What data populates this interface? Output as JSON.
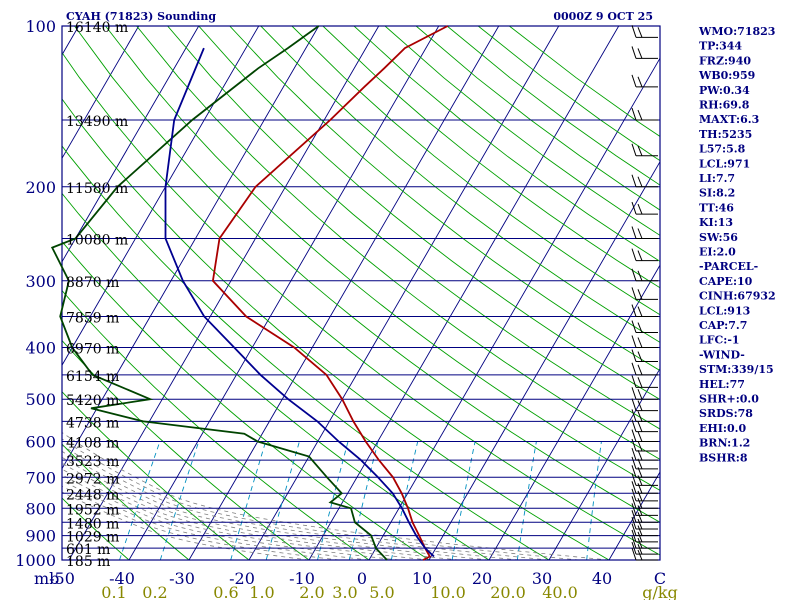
{
  "header": {
    "station": "CYAH (71823) Sounding",
    "datetime": "0000Z  9 OCT 25"
  },
  "chart_data": {
    "type": "line",
    "xlabel": "C",
    "ylabel": "mb",
    "xlim": [
      -50,
      50
    ],
    "ylim": [
      1000,
      100
    ],
    "y_scale": "log",
    "x_ticks": [
      -50,
      -40,
      -30,
      -20,
      -10,
      0,
      10,
      20,
      30,
      40
    ],
    "x_tick_labels": [
      "-50",
      "-40",
      "-30",
      "-20",
      "-10",
      "0",
      "10",
      "20",
      "30",
      "40"
    ],
    "mixing_ratio_label": "g/kg",
    "mixing_ratio_ticks": [
      "0.1",
      "0.2",
      "0.6",
      "1.0",
      "2.0",
      "3.0",
      "5.0",
      "10.0",
      "20.0",
      "40.0"
    ],
    "pressure_ticks": [
      100,
      200,
      300,
      400,
      500,
      600,
      700,
      800,
      900,
      1000
    ],
    "pressure_tick_labels": [
      "100",
      "200",
      "300",
      "400",
      "500",
      "600",
      "700",
      "800",
      "900",
      "1000"
    ],
    "height_labels": [
      {
        "p": 100,
        "label": "16140 m"
      },
      {
        "p": 150,
        "label": "13490 m"
      },
      {
        "p": 200,
        "label": "11580 m"
      },
      {
        "p": 250,
        "label": "10080 m"
      },
      {
        "p": 300,
        "label": "8870 m"
      },
      {
        "p": 350,
        "label": "7859 m"
      },
      {
        "p": 400,
        "label": "6970 m"
      },
      {
        "p": 450,
        "label": "6154 m"
      },
      {
        "p": 500,
        "label": "5420 m"
      },
      {
        "p": 550,
        "label": "4738 m"
      },
      {
        "p": 600,
        "label": "4108 m"
      },
      {
        "p": 650,
        "label": "3523 m"
      },
      {
        "p": 700,
        "label": "2972 m"
      },
      {
        "p": 750,
        "label": "2448 m"
      },
      {
        "p": 800,
        "label": "1952 m"
      },
      {
        "p": 850,
        "label": "1480 m"
      },
      {
        "p": 900,
        "label": "1029 m"
      },
      {
        "p": 950,
        "label": "601 m"
      },
      {
        "p": 1000,
        "label": "185 m"
      }
    ],
    "series": [
      {
        "color": "#aa0000",
        "points": [
          [
            100,
            -38.5
          ],
          [
            110,
            -43.5
          ],
          [
            120,
            -45
          ],
          [
            130,
            -46.5
          ],
          [
            150,
            -49
          ],
          [
            200,
            -55
          ],
          [
            250,
            -56
          ],
          [
            300,
            -53
          ],
          [
            350,
            -44
          ],
          [
            400,
            -33
          ],
          [
            450,
            -25
          ],
          [
            500,
            -20
          ],
          [
            550,
            -16
          ],
          [
            600,
            -12
          ],
          [
            650,
            -8
          ],
          [
            700,
            -4
          ],
          [
            750,
            -1
          ],
          [
            800,
            1.5
          ],
          [
            850,
            3.6
          ],
          [
            900,
            6
          ],
          [
            950,
            8.2
          ],
          [
            985,
            9.8
          ],
          [
            1000,
            9
          ]
        ]
      },
      {
        "color": "#004400",
        "points": [
          [
            100,
            -60
          ],
          [
            110,
            -63
          ],
          [
            120,
            -66
          ],
          [
            150,
            -72
          ],
          [
            200,
            -78
          ],
          [
            250,
            -80
          ],
          [
            260,
            -83
          ],
          [
            300,
            -77
          ],
          [
            350,
            -75
          ],
          [
            400,
            -70
          ],
          [
            450,
            -64
          ],
          [
            500,
            -52
          ],
          [
            520,
            -61
          ],
          [
            550,
            -51
          ],
          [
            580,
            -33
          ],
          [
            600,
            -30
          ],
          [
            640,
            -20
          ],
          [
            700,
            -15
          ],
          [
            750,
            -11
          ],
          [
            780,
            -12
          ],
          [
            800,
            -8
          ],
          [
            850,
            -6
          ],
          [
            900,
            -2
          ],
          [
            950,
            0
          ],
          [
            1000,
            3
          ]
        ]
      },
      {
        "color": "#000090",
        "points": [
          [
            110,
            -77
          ],
          [
            150,
            -75
          ],
          [
            200,
            -70
          ],
          [
            250,
            -65
          ],
          [
            300,
            -58
          ],
          [
            350,
            -51
          ],
          [
            400,
            -43
          ],
          [
            450,
            -36
          ],
          [
            500,
            -29
          ],
          [
            550,
            -22
          ],
          [
            600,
            -16.5
          ],
          [
            650,
            -11
          ],
          [
            700,
            -6.5
          ],
          [
            750,
            -2.5
          ],
          [
            800,
            0.5
          ],
          [
            850,
            3
          ],
          [
            900,
            5.5
          ],
          [
            950,
            8.2
          ],
          [
            985,
            10.5
          ]
        ]
      }
    ],
    "wind_barbs": [
      {
        "p": 105
      },
      {
        "p": 115
      },
      {
        "p": 130
      },
      {
        "p": 150
      },
      {
        "p": 175
      },
      {
        "p": 200
      },
      {
        "p": 225
      },
      {
        "p": 250
      },
      {
        "p": 275
      },
      {
        "p": 300
      },
      {
        "p": 325
      },
      {
        "p": 350
      },
      {
        "p": 375
      },
      {
        "p": 400
      },
      {
        "p": 425
      },
      {
        "p": 450
      },
      {
        "p": 475
      },
      {
        "p": 500
      },
      {
        "p": 525
      },
      {
        "p": 550
      },
      {
        "p": 575
      },
      {
        "p": 600
      },
      {
        "p": 625
      },
      {
        "p": 650
      },
      {
        "p": 675
      },
      {
        "p": 700
      },
      {
        "p": 725
      },
      {
        "p": 750
      },
      {
        "p": 775
      },
      {
        "p": 800
      },
      {
        "p": 825
      },
      {
        "p": 850
      },
      {
        "p": 875
      },
      {
        "p": 900
      },
      {
        "p": 925
      },
      {
        "p": 950
      },
      {
        "p": 975
      },
      {
        "p": 1000
      }
    ]
  },
  "indices": [
    "WMO:71823",
    "TP:344",
    "FRZ:940",
    "WB0:959",
    "PW:0.34",
    "RH:69.8",
    "MAXT:6.3",
    "TH:5235",
    "L57:5.8",
    "LCL:971",
    "LI:7.7",
    "SI:8.2",
    "TT:46",
    "KI:13",
    "SW:56",
    "EI:2.0",
    "-PARCEL-",
    "CAPE:10",
    "CINH:67932",
    "LCL:913",
    "CAP:7.7",
    "LFC:-1",
    "-WIND-",
    "STM:339/15",
    "HEL:77",
    "SHR+:0.0",
    "SRDS:78",
    "EHI:0.0",
    "BRN:1.2",
    "BSHR:8"
  ],
  "colors": {
    "frame": "#000080",
    "isobar": "#000080",
    "isotherm": "#000080",
    "dry_adiabat": "#00a000",
    "moist_adiabat": "#808080",
    "mixing_ratio": "#0090c0",
    "temperature": "#aa0000",
    "dewpoint": "#004400",
    "parcel": "#000090",
    "wind": "#000000",
    "index_text": "#000080",
    "mixing_label": "#888800"
  }
}
